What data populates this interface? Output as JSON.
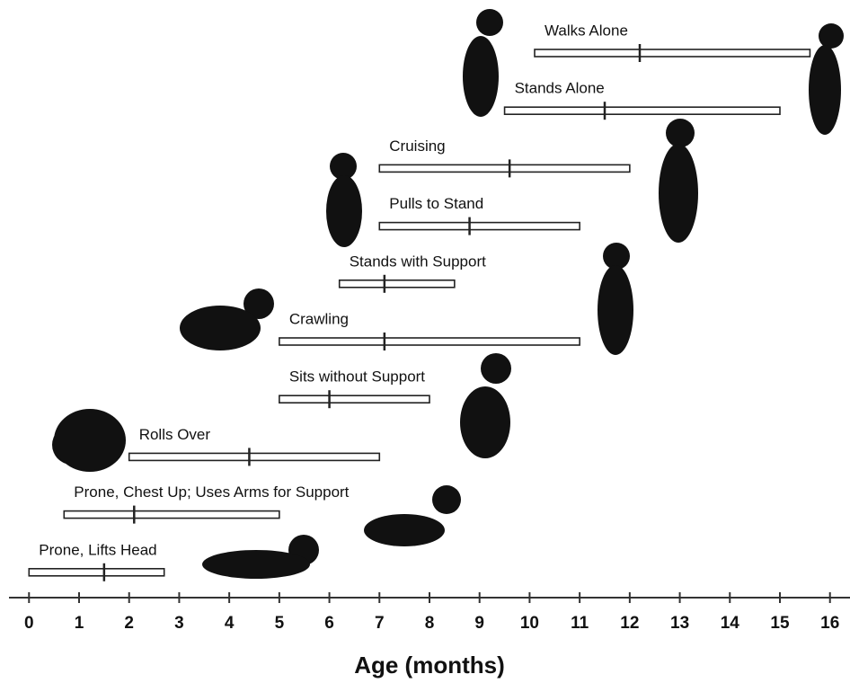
{
  "chart_data": {
    "type": "range",
    "x_label": "Age (months)",
    "categories": [
      "Walks Alone",
      "Stands Alone",
      "Cruising",
      "Pulls to Stand",
      "Stands with Support",
      "Crawling",
      "Sits without Support",
      "Rolls Over",
      "Prone, Chest Up; Uses Arms for Support",
      "Prone, Lifts Head"
    ],
    "start": [
      10.1,
      9.5,
      7.0,
      7.0,
      6.2,
      5.0,
      5.0,
      2.0,
      0.7,
      0
    ],
    "median": [
      12.2,
      11.5,
      9.6,
      8.8,
      7.1,
      7.1,
      6,
      4.4,
      2.1,
      1.5
    ],
    "end": [
      15.6,
      15,
      12,
      11,
      8.5,
      11,
      8,
      7,
      5,
      2.7
    ],
    "color": "#222222",
    "xlim": [
      -0.4,
      16.4
    ],
    "xticks": [
      0,
      1,
      2,
      3,
      4,
      5,
      6,
      7,
      8,
      9,
      10,
      11,
      12,
      13,
      14,
      15,
      16
    ]
  }
}
